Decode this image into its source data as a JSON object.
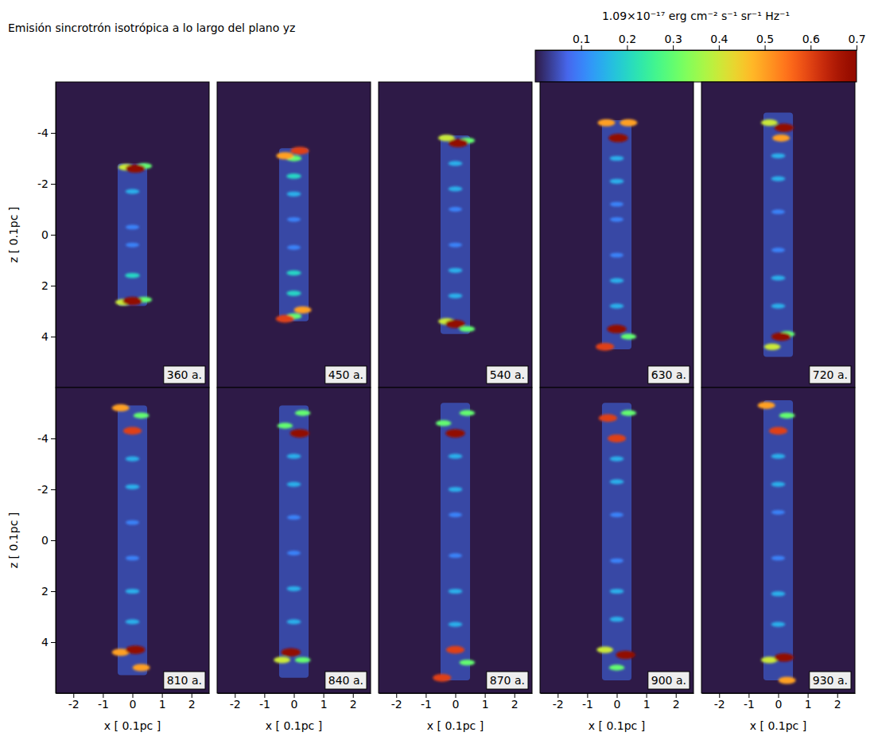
{
  "chart_data": {
    "type": "heatmap",
    "title": "Emisión sincrotrón isotrópica a lo largo del plano yz",
    "x_label": "x [ 0.1pc ]",
    "y_label": "z [ 0.1pc ]",
    "xlim": [
      -2.6,
      2.6
    ],
    "xticks": [
      -2,
      -1,
      0,
      1,
      2
    ],
    "ylim": [
      6,
      -6
    ],
    "yticks": [
      -4,
      -2,
      0,
      2,
      4
    ],
    "colorbar": {
      "label": "1.09×10⁻¹⁷ erg cm⁻² s⁻¹ sr⁻¹ Hz⁻¹",
      "range": [
        0,
        0.7
      ],
      "ticks": [
        0.1,
        0.2,
        0.3,
        0.4,
        0.5,
        0.6,
        0.7
      ]
    },
    "cocoon_value": 0.08,
    "cocoon_halfwidth": 0.5,
    "panels": [
      {
        "time": "360 a.",
        "cocoon": [
          -2.8,
          2.8
        ],
        "knots": [
          [
            0.1,
            -2.6,
            0.7
          ],
          [
            -0.2,
            -2.65,
            0.4
          ],
          [
            0.4,
            -2.7,
            0.3
          ],
          [
            0,
            -1.7,
            0.15
          ],
          [
            0,
            -0.3,
            0.1
          ],
          [
            0,
            0.4,
            0.1
          ],
          [
            0,
            1.6,
            0.2
          ],
          [
            0,
            2.6,
            0.7
          ],
          [
            -0.3,
            2.65,
            0.4
          ],
          [
            0.4,
            2.55,
            0.3
          ]
        ]
      },
      {
        "time": "450 a.",
        "cocoon": [
          -3.4,
          3.4
        ],
        "knots": [
          [
            0.2,
            -3.3,
            0.6
          ],
          [
            -0.3,
            -3.1,
            0.5
          ],
          [
            0,
            -3.0,
            0.3
          ],
          [
            0,
            -2.3,
            0.2
          ],
          [
            0,
            -1.6,
            0.15
          ],
          [
            0,
            -0.6,
            0.1
          ],
          [
            0,
            0.5,
            0.1
          ],
          [
            0,
            1.5,
            0.2
          ],
          [
            0,
            2.3,
            0.2
          ],
          [
            -0.3,
            3.3,
            0.6
          ],
          [
            0.3,
            2.95,
            0.5
          ],
          [
            0,
            3.2,
            0.3
          ]
        ]
      },
      {
        "time": "540 a.",
        "cocoon": [
          -3.9,
          3.9
        ],
        "knots": [
          [
            0.1,
            -3.6,
            0.7
          ],
          [
            -0.3,
            -3.8,
            0.4
          ],
          [
            0.4,
            -3.7,
            0.3
          ],
          [
            0,
            -2.8,
            0.15
          ],
          [
            0,
            -1.8,
            0.15
          ],
          [
            0,
            -1.0,
            0.1
          ],
          [
            0,
            0.4,
            0.1
          ],
          [
            0,
            1.4,
            0.15
          ],
          [
            0,
            2.4,
            0.15
          ],
          [
            0,
            3.5,
            0.7
          ],
          [
            -0.3,
            3.4,
            0.4
          ],
          [
            0.4,
            3.7,
            0.3
          ]
        ]
      },
      {
        "time": "630 a.",
        "cocoon": [
          -4.5,
          4.5
        ],
        "knots": [
          [
            -0.35,
            -4.4,
            0.5
          ],
          [
            0.05,
            -3.8,
            0.7
          ],
          [
            0.4,
            -4.4,
            0.5
          ],
          [
            0,
            -3.0,
            0.15
          ],
          [
            0,
            -2.1,
            0.15
          ],
          [
            0,
            -1.2,
            0.1
          ],
          [
            0,
            -0.6,
            0.1
          ],
          [
            0,
            0.8,
            0.1
          ],
          [
            0,
            1.8,
            0.15
          ],
          [
            0,
            2.8,
            0.15
          ],
          [
            -0.4,
            4.4,
            0.6
          ],
          [
            0,
            3.7,
            0.7
          ],
          [
            0.4,
            4.0,
            0.3
          ]
        ]
      },
      {
        "time": "720 a.",
        "cocoon": [
          -4.8,
          4.8
        ],
        "knots": [
          [
            0.2,
            -4.2,
            0.7
          ],
          [
            -0.3,
            -4.4,
            0.4
          ],
          [
            0.1,
            -3.8,
            0.5
          ],
          [
            0,
            -3.1,
            0.15
          ],
          [
            0,
            -2.2,
            0.15
          ],
          [
            0,
            -0.9,
            0.1
          ],
          [
            0,
            0.6,
            0.1
          ],
          [
            0,
            1.7,
            0.15
          ],
          [
            0,
            2.8,
            0.15
          ],
          [
            0.1,
            4.0,
            0.7
          ],
          [
            -0.2,
            4.4,
            0.4
          ],
          [
            0.3,
            3.9,
            0.3
          ]
        ]
      },
      {
        "time": "810 a.",
        "cocoon": [
          -5.3,
          5.3
        ],
        "knots": [
          [
            -0.4,
            -5.2,
            0.5
          ],
          [
            0,
            -4.3,
            0.6
          ],
          [
            0.3,
            -4.9,
            0.3
          ],
          [
            0,
            -3.2,
            0.15
          ],
          [
            0,
            -2.1,
            0.15
          ],
          [
            0,
            -0.7,
            0.1
          ],
          [
            0,
            0.7,
            0.1
          ],
          [
            0,
            2.0,
            0.15
          ],
          [
            0,
            3.2,
            0.15
          ],
          [
            0.1,
            4.3,
            0.7
          ],
          [
            -0.4,
            4.4,
            0.5
          ],
          [
            0.3,
            5.0,
            0.5
          ]
        ]
      },
      {
        "time": "840 a.",
        "cocoon": [
          -5.3,
          5.4
        ],
        "knots": [
          [
            0.2,
            -4.2,
            0.7
          ],
          [
            -0.3,
            -4.5,
            0.3
          ],
          [
            0.3,
            -5.0,
            0.3
          ],
          [
            0,
            -3.3,
            0.15
          ],
          [
            0,
            -2.2,
            0.15
          ],
          [
            0,
            -0.9,
            0.1
          ],
          [
            0,
            0.5,
            0.1
          ],
          [
            0,
            1.9,
            0.15
          ],
          [
            0,
            3.2,
            0.15
          ],
          [
            -0.1,
            4.4,
            0.7
          ],
          [
            -0.4,
            4.7,
            0.4
          ],
          [
            0.3,
            4.7,
            0.3
          ]
        ]
      },
      {
        "time": "870 a.",
        "cocoon": [
          -5.4,
          5.5
        ],
        "knots": [
          [
            0,
            -4.2,
            0.7
          ],
          [
            -0.4,
            -4.6,
            0.3
          ],
          [
            0.4,
            -5.0,
            0.3
          ],
          [
            0,
            -3.3,
            0.15
          ],
          [
            0,
            -2.0,
            0.15
          ],
          [
            0,
            -1.0,
            0.1
          ],
          [
            0,
            0.6,
            0.1
          ],
          [
            0,
            2.0,
            0.15
          ],
          [
            0,
            3.3,
            0.15
          ],
          [
            -0.45,
            5.4,
            0.6
          ],
          [
            0,
            4.3,
            0.6
          ],
          [
            0.4,
            4.8,
            0.3
          ]
        ]
      },
      {
        "time": "900 a.",
        "cocoon": [
          -5.4,
          5.5
        ],
        "knots": [
          [
            -0.3,
            -4.8,
            0.6
          ],
          [
            0,
            -4.0,
            0.6
          ],
          [
            0.4,
            -5.0,
            0.3
          ],
          [
            0,
            -3.2,
            0.15
          ],
          [
            0,
            -2.3,
            0.15
          ],
          [
            0,
            -1.0,
            0.1
          ],
          [
            0,
            0.8,
            0.1
          ],
          [
            0,
            2.0,
            0.15
          ],
          [
            0,
            3.1,
            0.15
          ],
          [
            0.3,
            4.5,
            0.7
          ],
          [
            -0.4,
            4.3,
            0.4
          ],
          [
            0,
            5.0,
            0.3
          ]
        ]
      },
      {
        "time": "930 a.",
        "cocoon": [
          -5.5,
          5.5
        ],
        "knots": [
          [
            -0.4,
            -5.3,
            0.5
          ],
          [
            0,
            -4.3,
            0.6
          ],
          [
            0.3,
            -4.9,
            0.3
          ],
          [
            0,
            -3.3,
            0.15
          ],
          [
            0,
            -2.2,
            0.15
          ],
          [
            0,
            -1.1,
            0.1
          ],
          [
            0,
            0.7,
            0.1
          ],
          [
            0,
            2.1,
            0.15
          ],
          [
            0,
            3.3,
            0.15
          ],
          [
            0.2,
            4.6,
            0.7
          ],
          [
            -0.3,
            4.7,
            0.4
          ],
          [
            0.3,
            5.5,
            0.5
          ]
        ]
      }
    ]
  }
}
